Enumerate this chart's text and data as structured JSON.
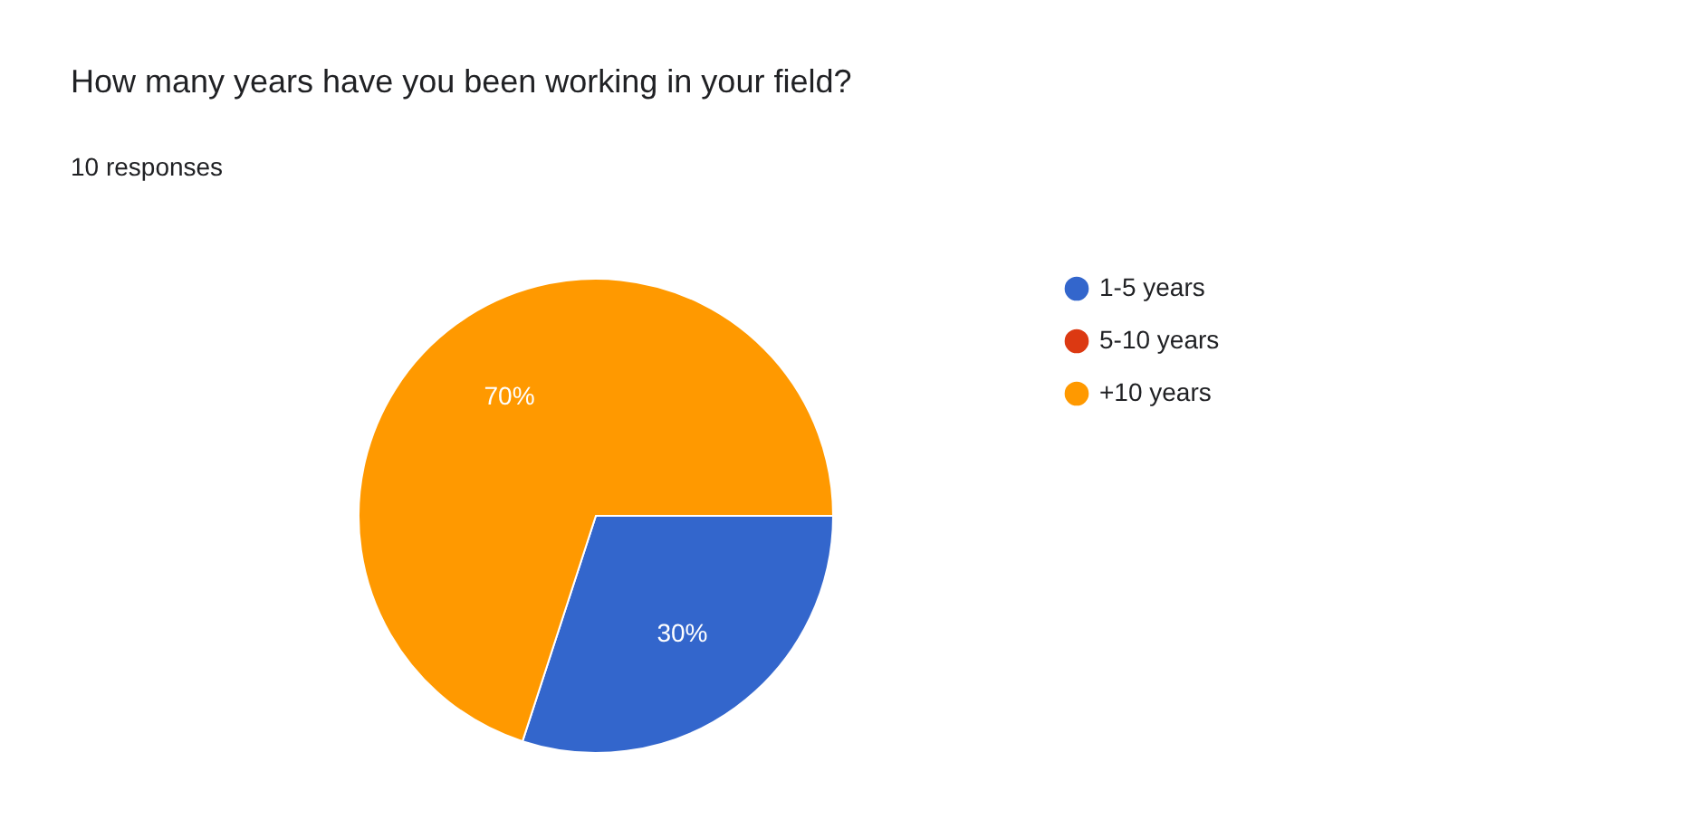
{
  "chart_data": {
    "type": "pie",
    "title": "How many years have you been working in your field?",
    "subtitle": "10 responses",
    "categories": [
      "1-5 years",
      "5-10 years",
      "+10 years"
    ],
    "values": [
      30,
      0,
      70
    ],
    "colors": [
      "#3366cc",
      "#dc3912",
      "#ff9900"
    ],
    "value_labels": [
      "30%",
      null,
      "70%"
    ],
    "legend": "right"
  }
}
